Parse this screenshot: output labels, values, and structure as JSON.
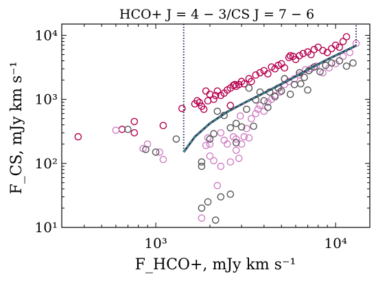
{
  "chart_data": {
    "type": "scatter",
    "title": "HCO+ J = 4 − 3/CS J = 7 − 6",
    "xlabel": "F_HCO+, mJy km s⁻¹",
    "ylabel": "F_CS, mJy km s⁻¹",
    "xscale": "log",
    "yscale": "log",
    "xlim": [
      300,
      15500
    ],
    "ylim": [
      10,
      15000
    ],
    "grid": false,
    "x_ticks": [
      {
        "value": 1000,
        "label": "10³"
      },
      {
        "value": 10000,
        "label": "10⁴"
      }
    ],
    "y_ticks": [
      {
        "value": 10,
        "label": "10¹"
      },
      {
        "value": 100,
        "label": "10²"
      },
      {
        "value": 1000,
        "label": "10³"
      },
      {
        "value": 10000,
        "label": "10⁴"
      }
    ],
    "colors": {
      "crimson": "#b5004f",
      "pink": "#d07ec4",
      "gray": "#555555",
      "curve_outer": "#3a3a5c",
      "curve_inner": "#2aa090",
      "vline": "#22224a"
    },
    "series": [
      {
        "marker": "open-circle",
        "color": "#b5004f",
        "points": [
          [
            370,
            260
          ],
          [
            650,
            340
          ],
          [
            760,
            450
          ],
          [
            760,
            300
          ],
          [
            1100,
            390
          ],
          [
            1400,
            720
          ],
          [
            1650,
            850
          ],
          [
            1700,
            950
          ],
          [
            1750,
            890
          ],
          [
            1800,
            780
          ],
          [
            1850,
            700
          ],
          [
            1900,
            1350
          ],
          [
            1950,
            950
          ],
          [
            2000,
            1200
          ],
          [
            2100,
            1000
          ],
          [
            2150,
            1150
          ],
          [
            2200,
            1350
          ],
          [
            2300,
            1150
          ],
          [
            2400,
            1250
          ],
          [
            2500,
            1400
          ],
          [
            2600,
            1500
          ],
          [
            2700,
            1650
          ],
          [
            2750,
            1700
          ],
          [
            2800,
            1600
          ],
          [
            2900,
            1700
          ],
          [
            3000,
            1900
          ],
          [
            3100,
            1750
          ],
          [
            3300,
            2100
          ],
          [
            3400,
            1900
          ],
          [
            3600,
            2400
          ],
          [
            3800,
            2600
          ],
          [
            4000,
            2800
          ],
          [
            4200,
            2500
          ],
          [
            4400,
            3200
          ],
          [
            4600,
            3000
          ],
          [
            4800,
            3400
          ],
          [
            5000,
            3600
          ],
          [
            5200,
            3100
          ],
          [
            5500,
            4500
          ],
          [
            5800,
            4700
          ],
          [
            6000,
            4200
          ],
          [
            6300,
            4800
          ],
          [
            6600,
            5200
          ],
          [
            7000,
            5500
          ],
          [
            7300,
            5000
          ],
          [
            7600,
            6000
          ],
          [
            8000,
            6500
          ],
          [
            8500,
            5800
          ],
          [
            9000,
            5400
          ],
          [
            9500,
            6200
          ],
          [
            10000,
            7000
          ],
          [
            10500,
            6500
          ],
          [
            11000,
            8000
          ],
          [
            11500,
            9500
          ],
          [
            2600,
            800
          ],
          [
            5600,
            4800
          ]
        ]
      },
      {
        "marker": "open-circle",
        "color": "#d07ec4",
        "points": [
          [
            600,
            330
          ],
          [
            850,
            170
          ],
          [
            900,
            200
          ],
          [
            1050,
            150
          ],
          [
            1100,
            115
          ],
          [
            1800,
            14
          ],
          [
            1900,
            190
          ],
          [
            1950,
            250
          ],
          [
            2000,
            200
          ],
          [
            2000,
            130
          ],
          [
            2100,
            110
          ],
          [
            2200,
            45
          ],
          [
            2300,
            300
          ],
          [
            2400,
            230
          ],
          [
            2500,
            200
          ],
          [
            2600,
            105
          ],
          [
            2700,
            260
          ],
          [
            2800,
            160
          ],
          [
            2900,
            120
          ],
          [
            2950,
            550
          ],
          [
            3000,
            200
          ],
          [
            3100,
            260
          ],
          [
            3200,
            350
          ],
          [
            3300,
            250
          ],
          [
            3400,
            500
          ],
          [
            3600,
            600
          ],
          [
            3700,
            700
          ],
          [
            3800,
            800
          ],
          [
            4000,
            650
          ],
          [
            4200,
            900
          ],
          [
            4400,
            1000
          ],
          [
            4600,
            1150
          ],
          [
            4900,
            1300
          ],
          [
            5200,
            1700
          ],
          [
            5500,
            1900
          ],
          [
            5900,
            2100
          ],
          [
            6300,
            2400
          ],
          [
            6800,
            2900
          ],
          [
            7300,
            3000
          ],
          [
            7800,
            3300
          ],
          [
            8500,
            2600
          ],
          [
            9200,
            3100
          ],
          [
            10000,
            3600
          ],
          [
            11000,
            4700
          ],
          [
            12000,
            5400
          ],
          [
            13000,
            7500
          ],
          [
            2300,
            90
          ],
          [
            2800,
            240
          ]
        ]
      },
      {
        "marker": "open-circle",
        "color": "#555555",
        "points": [
          [
            700,
            340
          ],
          [
            880,
            165
          ],
          [
            1000,
            150
          ],
          [
            1300,
            240
          ],
          [
            1800,
            105
          ],
          [
            1800,
            90
          ],
          [
            1800,
            20
          ],
          [
            1950,
            25
          ],
          [
            2150,
            13
          ],
          [
            2300,
            30
          ],
          [
            2600,
            33
          ],
          [
            2000,
            240
          ],
          [
            2100,
            290
          ],
          [
            2200,
            650
          ],
          [
            2400,
            560
          ],
          [
            2600,
            360
          ],
          [
            2800,
            210
          ],
          [
            2800,
            420
          ],
          [
            3000,
            370
          ],
          [
            3200,
            700
          ],
          [
            3300,
            1500
          ],
          [
            3500,
            380
          ],
          [
            3600,
            980
          ],
          [
            3800,
            1300
          ],
          [
            4000,
            950
          ],
          [
            4200,
            750
          ],
          [
            4300,
            1300
          ],
          [
            4600,
            1100
          ],
          [
            4800,
            1500
          ],
          [
            5000,
            1350
          ],
          [
            5200,
            2100
          ],
          [
            5600,
            1200
          ],
          [
            5900,
            1700
          ],
          [
            6300,
            2600
          ],
          [
            6700,
            2200
          ],
          [
            7100,
            2800
          ],
          [
            7600,
            3200
          ],
          [
            8200,
            2700
          ],
          [
            8800,
            3400
          ],
          [
            9500,
            3700
          ],
          [
            10500,
            4000
          ],
          [
            11500,
            3300
          ],
          [
            12500,
            3700
          ],
          [
            7000,
            1400
          ],
          [
            6400,
            1750
          ]
        ]
      }
    ],
    "lines": [
      {
        "style": "dotted",
        "color": "#22224a",
        "points": [
          [
            1430,
            15000
          ],
          [
            1430,
            150
          ]
        ]
      },
      {
        "style": "dashed",
        "color": "#2aa090",
        "points": [
          [
            1430,
            150
          ],
          [
            1650,
            260
          ],
          [
            2000,
            420
          ],
          [
            2500,
            640
          ],
          [
            3200,
            920
          ],
          [
            4200,
            1350
          ],
          [
            5500,
            2000
          ],
          [
            7000,
            2900
          ],
          [
            9000,
            4200
          ],
          [
            11000,
            5500
          ],
          [
            13000,
            6900
          ]
        ]
      },
      {
        "style": "dotted",
        "color": "#22224a",
        "points": [
          [
            13000,
            6900
          ],
          [
            13000,
            15000
          ]
        ]
      }
    ]
  }
}
